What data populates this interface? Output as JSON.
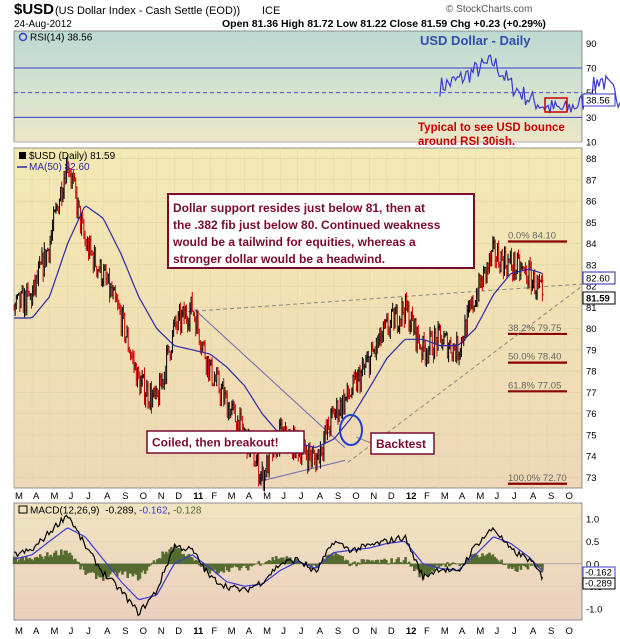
{
  "header": {
    "symbol": "$USD",
    "description": "(US Dollar Index - Cash Settle (EOD))",
    "exchange": "ICE",
    "date": "24-Aug-2012",
    "ohlc": "Open 81.36  High 81.72  Low 81.22  Close 81.59  Chg +0.23 (+0.29%)",
    "watermark": "© StockCharts.com"
  },
  "colors": {
    "price_up": "#000000",
    "price_down": "#cc0000",
    "ma_line": "#2a2aa8",
    "rsi_line": "#3a3ad0",
    "macd_line": "#000000",
    "signal_line": "#3a3ad0",
    "histogram": "#556b2f",
    "annotation_red": "#cc0000",
    "annotation_box_border": "#7a0a30",
    "fib_line": "#8a0000"
  },
  "chart_data": [
    {
      "type": "line",
      "panel": "RSI",
      "legend": "RSI(14) 38.56",
      "title": "USD Dollar - Daily",
      "ylim": [
        10,
        100
      ],
      "y_ticks": [
        10,
        30,
        50,
        70,
        90
      ],
      "reference_lines": [
        30,
        50,
        70
      ],
      "last_value_label": "38.56",
      "series": [
        {
          "values": [
            {
              "x": "2012-03-01",
              "y": 55
            },
            {
              "x": "2012-04-01",
              "y": 60
            },
            {
              "x": "2012-05-01",
              "y": 68
            },
            {
              "x": "2012-06-01",
              "y": 75
            },
            {
              "x": "2012-07-01",
              "y": 56
            },
            {
              "x": "2012-08-01",
              "y": 45
            },
            {
              "x": "2012-09-01",
              "y": 38
            },
            {
              "x": "2012-10-01",
              "y": 36
            },
            {
              "x": "2012-11-01",
              "y": 42
            },
            {
              "x": "2012-12-01",
              "y": 62
            },
            {
              "x": "2013-01-01",
              "y": 46
            },
            {
              "x": "2013-02-01",
              "y": 40
            },
            {
              "x": "2013-03-01",
              "y": 48
            },
            {
              "x": "2013-04-01",
              "y": 40
            },
            {
              "x": "2013-05-01",
              "y": 32
            },
            {
              "x": "2013-06-01",
              "y": 45
            },
            {
              "x": "2013-07-01",
              "y": 48
            },
            {
              "x": "2013-08-01",
              "y": 42
            },
            {
              "x": "2013-09-01",
              "y": 65
            },
            {
              "x": "2013-10-01",
              "y": 38
            },
            {
              "x": "2013-11-01",
              "y": 55
            },
            {
              "x": "2013-12-01",
              "y": 62
            },
            {
              "x": "2014-01-01",
              "y": 58
            },
            {
              "x": "2014-02-01",
              "y": 40
            },
            {
              "x": "2014-03-01",
              "y": 55
            },
            {
              "x": "2014-04-01",
              "y": 45
            },
            {
              "x": "2014-05-01",
              "y": 50
            },
            {
              "x": "2014-06-01",
              "y": 72
            },
            {
              "x": "2014-06-20",
              "y": 85
            },
            {
              "x": "2014-07-01",
              "y": 60
            },
            {
              "x": "2014-07-20",
              "y": 55
            },
            {
              "x": "2014-08-01",
              "y": 52
            },
            {
              "x": "2014-08-25",
              "y": 38.56
            }
          ]
        }
      ],
      "annotations": [
        {
          "text_lines": [
            "Typical to see USD bounce",
            "around RSI 30ish."
          ]
        }
      ]
    },
    {
      "type": "bar",
      "panel": "Price",
      "legend": [
        "$USD (Daily) 81.59",
        "MA(50) 82.60"
      ],
      "ylim": [
        72.5,
        88.5
      ],
      "y_ticks": [
        73,
        74,
        75,
        76,
        77,
        78,
        79,
        80,
        81,
        82,
        83,
        84,
        85,
        86,
        87,
        88
      ],
      "x_ticks": [
        "M",
        "A",
        "M",
        "J",
        "J",
        "A",
        "S",
        "O",
        "N",
        "D",
        "11",
        "F",
        "M",
        "A",
        "M",
        "J",
        "J",
        "A",
        "S",
        "O",
        "N",
        "D",
        "12",
        "F",
        "M",
        "A",
        "M",
        "J",
        "J",
        "A",
        "S",
        "O"
      ],
      "last_value_labels": [
        "82.60",
        "81.59"
      ],
      "price_series": [
        {
          "x": "2010-03-01",
          "y": 81.0
        },
        {
          "x": "2010-04-01",
          "y": 81.5
        },
        {
          "x": "2010-05-01",
          "y": 84.0
        },
        {
          "x": "2010-06-01",
          "y": 88.0
        },
        {
          "x": "2010-07-01",
          "y": 84.0
        },
        {
          "x": "2010-08-01",
          "y": 82.5
        },
        {
          "x": "2010-09-01",
          "y": 80.5
        },
        {
          "x": "2010-10-01",
          "y": 77.5
        },
        {
          "x": "2010-11-01",
          "y": 76.5
        },
        {
          "x": "2010-12-01",
          "y": 80.0
        },
        {
          "x": "2011-01-01",
          "y": 81.0
        },
        {
          "x": "2011-02-01",
          "y": 78.0
        },
        {
          "x": "2011-03-01",
          "y": 76.5
        },
        {
          "x": "2011-04-01",
          "y": 75.0
        },
        {
          "x": "2011-05-01",
          "y": 73.0
        },
        {
          "x": "2011-06-01",
          "y": 75.0
        },
        {
          "x": "2011-07-01",
          "y": 74.5
        },
        {
          "x": "2011-08-01",
          "y": 73.8
        },
        {
          "x": "2011-09-01",
          "y": 76.0
        },
        {
          "x": "2011-10-01",
          "y": 77.0
        },
        {
          "x": "2011-11-01",
          "y": 78.5
        },
        {
          "x": "2011-12-01",
          "y": 80.0
        },
        {
          "x": "2012-01-01",
          "y": 81.0
        },
        {
          "x": "2012-02-01",
          "y": 79.0
        },
        {
          "x": "2012-03-01",
          "y": 79.5
        },
        {
          "x": "2012-04-01",
          "y": 79.0
        },
        {
          "x": "2012-05-01",
          "y": 81.5
        },
        {
          "x": "2012-06-01",
          "y": 83.5
        },
        {
          "x": "2012-07-01",
          "y": 83.0
        },
        {
          "x": "2012-08-01",
          "y": 82.5
        },
        {
          "x": "2012-08-24",
          "y": 81.59
        }
      ],
      "ma_series": [
        {
          "x": "2010-03-01",
          "y": 80.5
        },
        {
          "x": "2010-04-01",
          "y": 80.5
        },
        {
          "x": "2010-05-01",
          "y": 81.5
        },
        {
          "x": "2010-06-01",
          "y": 84.0
        },
        {
          "x": "2010-07-01",
          "y": 85.8
        },
        {
          "x": "2010-08-01",
          "y": 85.2
        },
        {
          "x": "2010-09-01",
          "y": 83.5
        },
        {
          "x": "2010-10-01",
          "y": 81.5
        },
        {
          "x": "2010-11-01",
          "y": 80.0
        },
        {
          "x": "2010-12-01",
          "y": 79.2
        },
        {
          "x": "2011-01-01",
          "y": 79.0
        },
        {
          "x": "2011-02-01",
          "y": 78.8
        },
        {
          "x": "2011-03-01",
          "y": 78.2
        },
        {
          "x": "2011-04-01",
          "y": 77.3
        },
        {
          "x": "2011-05-01",
          "y": 76.0
        },
        {
          "x": "2011-06-01",
          "y": 75.0
        },
        {
          "x": "2011-07-01",
          "y": 74.6
        },
        {
          "x": "2011-08-01",
          "y": 74.4
        },
        {
          "x": "2011-09-01",
          "y": 74.8
        },
        {
          "x": "2011-10-01",
          "y": 75.8
        },
        {
          "x": "2011-11-01",
          "y": 77.2
        },
        {
          "x": "2011-12-01",
          "y": 78.6
        },
        {
          "x": "2012-01-01",
          "y": 79.5
        },
        {
          "x": "2012-02-01",
          "y": 79.5
        },
        {
          "x": "2012-03-01",
          "y": 79.2
        },
        {
          "x": "2012-04-01",
          "y": 79.2
        },
        {
          "x": "2012-05-01",
          "y": 80.0
        },
        {
          "x": "2012-06-01",
          "y": 81.6
        },
        {
          "x": "2012-07-01",
          "y": 82.6
        },
        {
          "x": "2012-08-01",
          "y": 82.8
        },
        {
          "x": "2012-08-24",
          "y": 82.6
        }
      ],
      "fib_levels": [
        {
          "label": "0.0% 84.10",
          "value": 84.1
        },
        {
          "label": "38.2% 79.75",
          "value": 79.75
        },
        {
          "label": "50.0% 78.40",
          "value": 78.4
        },
        {
          "label": "61.8% 77.05",
          "value": 77.05
        },
        {
          "label": "100.0% 72.70",
          "value": 72.7
        }
      ],
      "annotations": [
        {
          "text_lines": [
            "Dollar support resides just below 81, then at",
            "the .382 fib just below 80. Continued weakness",
            "would be a tailwind for equities, whereas a",
            "stronger dollar would be a headwind."
          ]
        },
        {
          "text": "Coiled, then breakout!"
        },
        {
          "text": "Backtest"
        }
      ]
    },
    {
      "type": "line",
      "panel": "MACD",
      "legend": "MACD(12,26,9) -0.289, -0.162, -0.128",
      "legend_parts": {
        "label": "MACD(12,26,9)",
        "macd": "-0.289",
        "signal": "-0.162",
        "histogram": "-0.128"
      },
      "ylim": [
        -1.25,
        1.35
      ],
      "y_ticks": [
        -1.0,
        -0.5,
        0.0,
        0.5,
        1.0
      ],
      "last_value_labels": [
        "-0.162",
        "-0.289"
      ],
      "series": [
        {
          "values": [
            {
              "x": "2010-03-01",
              "y": 0.2
            },
            {
              "x": "2010-04-01",
              "y": 0.3
            },
            {
              "x": "2010-05-01",
              "y": 0.7
            },
            {
              "x": "2010-06-01",
              "y": 1.1
            },
            {
              "x": "2010-07-01",
              "y": 0.4
            },
            {
              "x": "2010-08-01",
              "y": -0.2
            },
            {
              "x": "2010-09-01",
              "y": -0.6
            },
            {
              "x": "2010-10-01",
              "y": -1.1
            },
            {
              "x": "2010-11-01",
              "y": -0.6
            },
            {
              "x": "2010-12-01",
              "y": 0.4
            },
            {
              "x": "2011-01-01",
              "y": 0.3
            },
            {
              "x": "2011-02-01",
              "y": -0.3
            },
            {
              "x": "2011-03-01",
              "y": -0.5
            },
            {
              "x": "2011-04-01",
              "y": -0.6
            },
            {
              "x": "2011-05-01",
              "y": -0.4
            },
            {
              "x": "2011-06-01",
              "y": 0.0
            },
            {
              "x": "2011-07-01",
              "y": 0.1
            },
            {
              "x": "2011-08-01",
              "y": -0.2
            },
            {
              "x": "2011-09-01",
              "y": 0.5
            },
            {
              "x": "2011-10-01",
              "y": 0.3
            },
            {
              "x": "2011-11-01",
              "y": 0.4
            },
            {
              "x": "2011-12-01",
              "y": 0.5
            },
            {
              "x": "2012-01-01",
              "y": 0.6
            },
            {
              "x": "2012-02-01",
              "y": -0.3
            },
            {
              "x": "2012-03-01",
              "y": -0.1
            },
            {
              "x": "2012-04-01",
              "y": -0.2
            },
            {
              "x": "2012-05-01",
              "y": 0.4
            },
            {
              "x": "2012-06-01",
              "y": 0.8
            },
            {
              "x": "2012-07-01",
              "y": 0.3
            },
            {
              "x": "2012-08-01",
              "y": 0.1
            },
            {
              "x": "2012-08-24",
              "y": -0.289
            }
          ]
        },
        {
          "values": [
            {
              "x": "2010-03-01",
              "y": 0.1
            },
            {
              "x": "2010-04-01",
              "y": 0.2
            },
            {
              "x": "2010-05-01",
              "y": 0.5
            },
            {
              "x": "2010-06-01",
              "y": 0.8
            },
            {
              "x": "2010-07-01",
              "y": 0.6
            },
            {
              "x": "2010-08-01",
              "y": 0.1
            },
            {
              "x": "2010-09-01",
              "y": -0.4
            },
            {
              "x": "2010-10-01",
              "y": -0.8
            },
            {
              "x": "2010-11-01",
              "y": -0.7
            },
            {
              "x": "2010-12-01",
              "y": 0.0
            },
            {
              "x": "2011-01-01",
              "y": 0.2
            },
            {
              "x": "2011-02-01",
              "y": -0.1
            },
            {
              "x": "2011-03-01",
              "y": -0.4
            },
            {
              "x": "2011-04-01",
              "y": -0.5
            },
            {
              "x": "2011-05-01",
              "y": -0.45
            },
            {
              "x": "2011-06-01",
              "y": -0.15
            },
            {
              "x": "2011-07-01",
              "y": 0.05
            },
            {
              "x": "2011-08-01",
              "y": -0.1
            },
            {
              "x": "2011-09-01",
              "y": 0.25
            },
            {
              "x": "2011-10-01",
              "y": 0.3
            },
            {
              "x": "2011-11-01",
              "y": 0.35
            },
            {
              "x": "2011-12-01",
              "y": 0.45
            },
            {
              "x": "2012-01-01",
              "y": 0.5
            },
            {
              "x": "2012-02-01",
              "y": 0.0
            },
            {
              "x": "2012-03-01",
              "y": -0.1
            },
            {
              "x": "2012-04-01",
              "y": -0.15
            },
            {
              "x": "2012-05-01",
              "y": 0.2
            },
            {
              "x": "2012-06-01",
              "y": 0.6
            },
            {
              "x": "2012-07-01",
              "y": 0.45
            },
            {
              "x": "2012-08-01",
              "y": 0.15
            },
            {
              "x": "2012-08-24",
              "y": -0.162
            }
          ]
        }
      ]
    }
  ]
}
